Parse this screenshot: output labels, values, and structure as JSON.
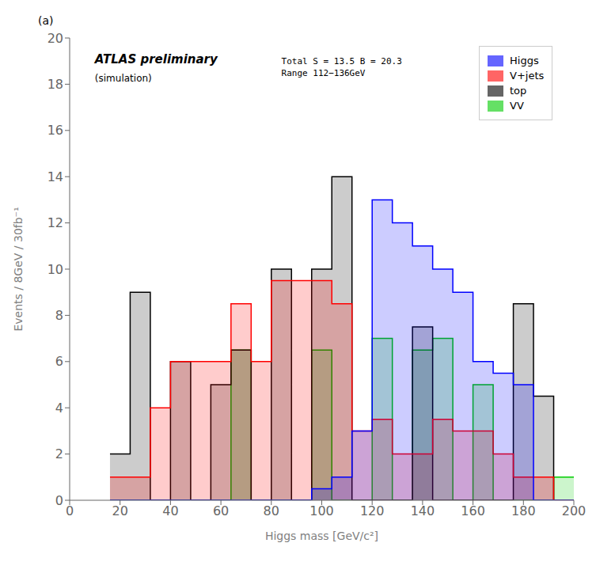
{
  "chart_data": {
    "type": "histogram",
    "title": "(a)",
    "annotations": [
      "ATLAS preliminary",
      "(simulation)",
      "Total S = 13.5 B = 20.3\nRange 112−136GeV"
    ],
    "xlabel": "Higgs mass [GeV/c²]",
    "ylabel": "Events / 8GeV / 30fb⁻¹",
    "xlim": [
      0,
      200
    ],
    "ylim": [
      0,
      20
    ],
    "xticks": [
      0,
      20,
      40,
      60,
      80,
      100,
      120,
      140,
      160,
      180,
      200
    ],
    "yticks": [
      0,
      2,
      4,
      6,
      8,
      10,
      12,
      14,
      16,
      18,
      20
    ],
    "bins": [
      16,
      24,
      32,
      40,
      48,
      56,
      64,
      72,
      80,
      88,
      96,
      104,
      112,
      120,
      128,
      136,
      144,
      152,
      160,
      168,
      176,
      184,
      192,
      200
    ],
    "series": [
      {
        "name": "Higgs",
        "color": "#0000ff",
        "values": [
          0,
          0,
          0,
          0,
          0,
          0,
          0,
          0,
          0,
          0,
          0.5,
          1.0,
          3.0,
          13.0,
          12.0,
          11.0,
          10.0,
          9.0,
          6.0,
          5.5,
          5.0,
          0,
          0
        ]
      },
      {
        "name": "V+jets",
        "color": "#ff0000",
        "values": [
          1.0,
          1.0,
          4.0,
          6.0,
          6.0,
          6.0,
          8.5,
          6.0,
          9.5,
          9.5,
          9.5,
          8.5,
          3.0,
          3.5,
          2.0,
          2.0,
          3.5,
          3.0,
          3.0,
          2.0,
          1.0,
          1.0,
          0
        ]
      },
      {
        "name": "top",
        "color": "#000000",
        "values": [
          2.0,
          9.0,
          0,
          6.0,
          0,
          5.0,
          6.5,
          0,
          10.0,
          0,
          10.0,
          14.0,
          0,
          0,
          0,
          7.5,
          0,
          0,
          0,
          0,
          8.5,
          4.5,
          0
        ]
      },
      {
        "name": "VV",
        "color": "#00cc00",
        "values": [
          0,
          0,
          0,
          0,
          0,
          0,
          6.5,
          0,
          0,
          0,
          6.5,
          0,
          0,
          7.0,
          0,
          6.5,
          7.0,
          0,
          5.0,
          0,
          0,
          0,
          1.0
        ]
      }
    ],
    "grid": false,
    "legend": "upper right"
  }
}
